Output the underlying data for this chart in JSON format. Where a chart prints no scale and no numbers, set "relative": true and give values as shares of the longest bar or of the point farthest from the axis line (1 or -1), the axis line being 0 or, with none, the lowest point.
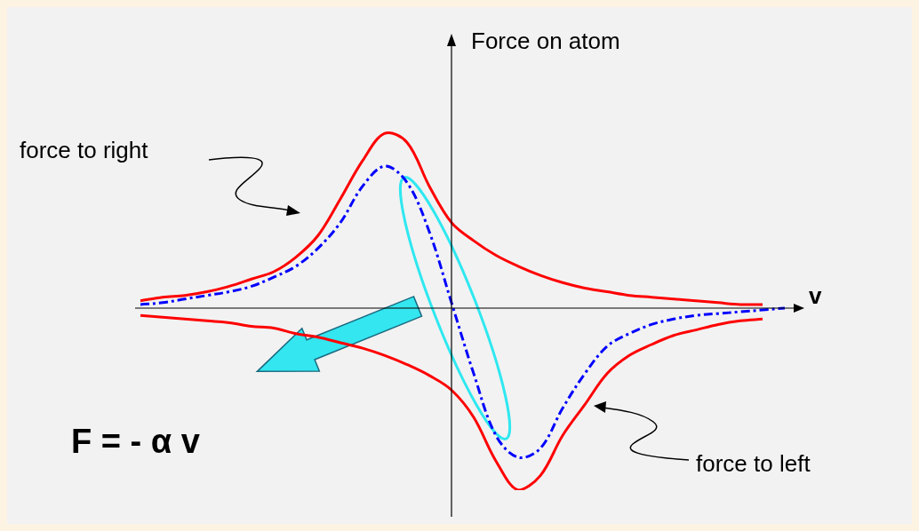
{
  "chart_data": {
    "type": "line",
    "relative": true,
    "xlabel": "v",
    "ylabel": "Force on atom",
    "categories": [
      null,
      null,
      null,
      null,
      null,
      null,
      null,
      null,
      null,
      null,
      null,
      null,
      null,
      null,
      null,
      null,
      null,
      null,
      null,
      null,
      null,
      null,
      null,
      null,
      null,
      null,
      null,
      null,
      null,
      null
    ],
    "series": [
      {
        "color": "#ff0000",
        "line_style": "solid",
        "values": [
          0.04,
          0.06,
          0.07,
          0.09,
          0.12,
          0.16,
          0.2,
          0.28,
          0.4,
          0.6,
          0.81,
          0.96,
          0.91,
          0.67,
          0.47,
          0.37,
          0.29,
          0.23,
          0.18,
          0.14,
          0.11,
          0.09,
          0.07,
          0.06,
          0.05,
          0.04,
          0.03,
          0.02,
          0.02,
          null
        ]
      },
      {
        "color": "#ff0000",
        "line_style": "solid",
        "values": [
          -0.04,
          -0.05,
          -0.06,
          -0.07,
          -0.08,
          -0.1,
          -0.11,
          -0.14,
          -0.16,
          -0.19,
          -0.22,
          -0.26,
          -0.31,
          -0.37,
          -0.45,
          -0.6,
          -0.84,
          -1,
          -0.92,
          -0.7,
          -0.53,
          -0.36,
          -0.26,
          -0.2,
          -0.15,
          -0.12,
          -0.09,
          -0.07,
          -0.06,
          null
        ]
      },
      {
        "color": "#0000ff",
        "line_style": "dashed",
        "values": [
          0.02,
          0.03,
          0.05,
          0.07,
          0.09,
          0.12,
          0.17,
          0.23,
          0.33,
          0.47,
          0.67,
          0.78,
          0.69,
          0.42,
          0.03,
          -0.36,
          -0.7,
          -0.82,
          -0.77,
          -0.55,
          -0.36,
          -0.21,
          -0.14,
          -0.09,
          -0.06,
          -0.04,
          -0.03,
          -0.02,
          -0.01,
          0
        ]
      }
    ],
    "annotations": [
      "force to right",
      "force to left",
      "F = - α v"
    ]
  }
}
